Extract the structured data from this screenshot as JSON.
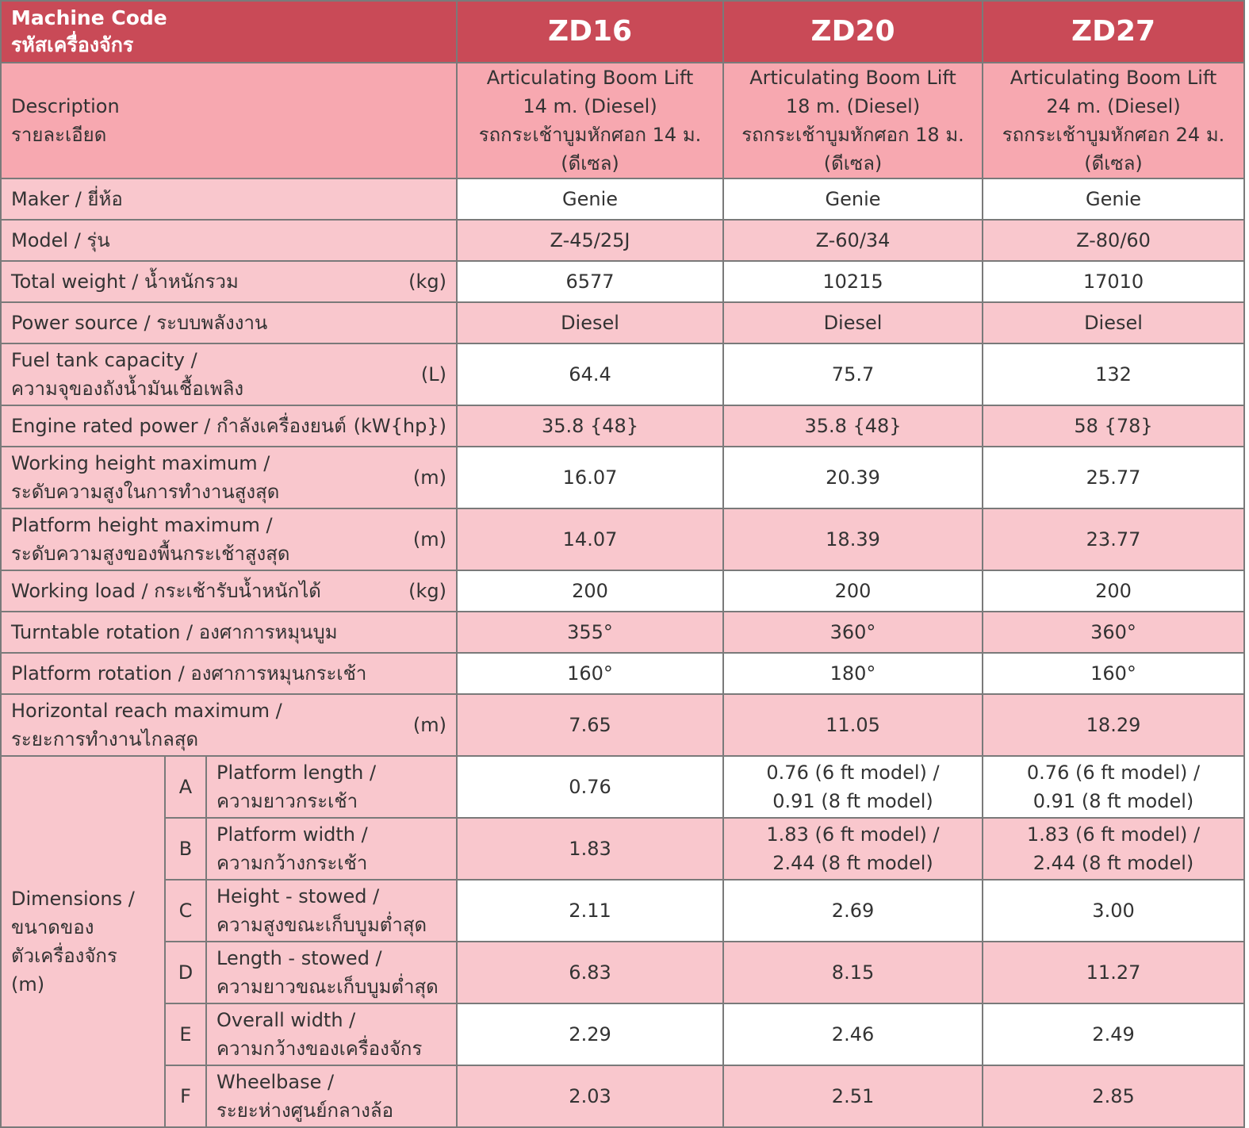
{
  "header": {
    "label_en": "Machine Code",
    "label_th": "รหัสเครื่องจักร",
    "codes": [
      "ZD16",
      "ZD20",
      "ZD27"
    ]
  },
  "description": {
    "label_en": "Description",
    "label_th": "รายละเอียด",
    "values": [
      [
        "Articulating Boom Lift",
        "14 m. (Diesel)",
        "รถกระเช้าบูมหักศอก 14 ม.",
        "(ดีเซล)"
      ],
      [
        "Articulating Boom Lift",
        "18 m. (Diesel)",
        "รถกระเช้าบูมหักศอก 18 ม.",
        "(ดีเซล)"
      ],
      [
        "Articulating Boom Lift",
        "24 m. (Diesel)",
        "รถกระเช้าบูมหักศอก 24 ม.",
        "(ดีเซล)"
      ]
    ]
  },
  "specs": [
    {
      "label": [
        "Maker / ยี่ห้อ"
      ],
      "unit": "",
      "values": [
        "Genie",
        "Genie",
        "Genie"
      ]
    },
    {
      "label": [
        "Model / รุ่น"
      ],
      "unit": "",
      "values": [
        "Z-45/25J",
        "Z-60/34",
        "Z-80/60"
      ]
    },
    {
      "label": [
        "Total weight / น้ำหนักรวม"
      ],
      "unit": "(kg)",
      "values": [
        "6577",
        "10215",
        "17010"
      ]
    },
    {
      "label": [
        "Power source / ระบบพลังงาน"
      ],
      "unit": "",
      "values": [
        "Diesel",
        "Diesel",
        "Diesel"
      ]
    },
    {
      "label": [
        "Fuel tank capacity /",
        "ความจุของถังน้ำมันเชื้อเพลิง"
      ],
      "unit": "(L)",
      "values": [
        "64.4",
        "75.7",
        "132"
      ]
    },
    {
      "label": [
        "Engine rated power / กำลังเครื่องยนต์"
      ],
      "unit": "(kW{hp})",
      "values": [
        "35.8 {48}",
        "35.8 {48}",
        "58 {78}"
      ]
    },
    {
      "label": [
        "Working height maximum /",
        "ระดับความสูงในการทำงานสูงสุด"
      ],
      "unit": "(m)",
      "values": [
        "16.07",
        "20.39",
        "25.77"
      ]
    },
    {
      "label": [
        "Platform height maximum /",
        "ระดับความสูงของพื้นกระเช้าสูงสุด"
      ],
      "unit": "(m)",
      "values": [
        "14.07",
        "18.39",
        "23.77"
      ]
    },
    {
      "label": [
        "Working load / กระเช้ารับน้ำหนักได้"
      ],
      "unit": "(kg)",
      "values": [
        "200",
        "200",
        "200"
      ]
    },
    {
      "label": [
        "Turntable rotation / องศาการหมุนบูม"
      ],
      "unit": "",
      "values": [
        "355°",
        "360°",
        "360°"
      ]
    },
    {
      "label": [
        "Platform rotation / องศาการหมุนกระเช้า"
      ],
      "unit": "",
      "values": [
        "160°",
        "180°",
        "160°"
      ]
    },
    {
      "label": [
        "Horizontal reach maximum /",
        "ระยะการทำงานไกลสุด"
      ],
      "unit": "(m)",
      "values": [
        "7.65",
        "11.05",
        "18.29"
      ]
    }
  ],
  "dimensions": {
    "label": [
      "Dimensions /",
      "ขนาดของ",
      "ตัวเครื่องจักร",
      "(m)"
    ],
    "rows": [
      {
        "letter": "A",
        "label": [
          "Platform length /",
          "ความยาวกระเช้า"
        ],
        "values": [
          [
            "0.76"
          ],
          [
            "0.76 (6 ft model) /",
            "0.91 (8 ft model)"
          ],
          [
            "0.76 (6 ft model) /",
            "0.91 (8 ft model)"
          ]
        ]
      },
      {
        "letter": "B",
        "label": [
          "Platform width /",
          "ความกว้างกระเช้า"
        ],
        "values": [
          [
            "1.83"
          ],
          [
            "1.83 (6 ft model) /",
            "2.44 (8 ft model)"
          ],
          [
            "1.83 (6 ft model) /",
            "2.44 (8 ft model)"
          ]
        ]
      },
      {
        "letter": "C",
        "label": [
          "Height - stowed /",
          "ความสูงขณะเก็บบูมต่ำสุด"
        ],
        "values": [
          [
            "2.11"
          ],
          [
            "2.69"
          ],
          [
            "3.00"
          ]
        ]
      },
      {
        "letter": "D",
        "label": [
          "Length - stowed /",
          "ความยาวขณะเก็บบูมต่ำสุด"
        ],
        "values": [
          [
            "6.83"
          ],
          [
            "8.15"
          ],
          [
            "11.27"
          ]
        ]
      },
      {
        "letter": "E",
        "label": [
          "Overall width /",
          "ความกว้างของเครื่องจักร"
        ],
        "values": [
          [
            "2.29"
          ],
          [
            "2.46"
          ],
          [
            "2.49"
          ]
        ]
      },
      {
        "letter": "F",
        "label": [
          "Wheelbase /",
          "ระยะห่างศูนย์กลางล้อ"
        ],
        "values": [
          [
            "2.03"
          ],
          [
            "2.51"
          ],
          [
            "2.85"
          ]
        ]
      }
    ]
  }
}
